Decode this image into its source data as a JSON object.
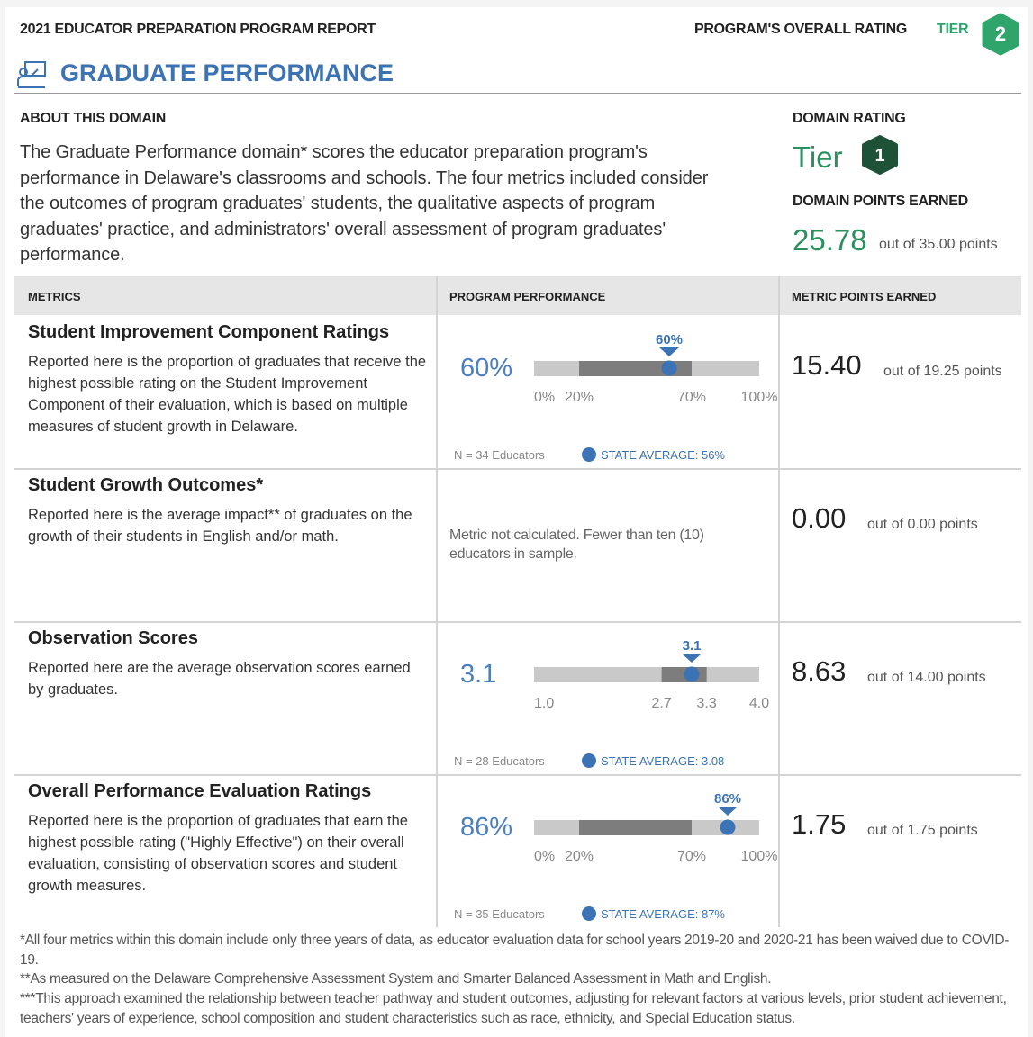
{
  "header": {
    "report_title": "2021 EDUCATOR PREPARATION PROGRAM REPORT",
    "overall_rating_label": "PROGRAM'S OVERALL RATING",
    "tier_label": "TIER",
    "tier_value": "2"
  },
  "section_title": "GRADUATE PERFORMANCE",
  "about": {
    "heading": "ABOUT THIS DOMAIN",
    "text": "The Graduate Performance domain* scores the educator preparation program's performance in Delaware's classrooms and schools. The four metrics included consider the outcomes of program graduates' students, the qualitative aspects of program graduates' practice, and administrators' overall assessment of program graduates' performance."
  },
  "domain": {
    "rating_heading": "DOMAIN RATING",
    "tier_word": "Tier",
    "tier_value": "1",
    "points_heading": "DOMAIN POINTS EARNED",
    "points": "25.78",
    "out_of": "out of 35.00 points"
  },
  "table": {
    "headers": [
      "METRICS",
      "PROGRAM PERFORMANCE",
      "METRIC POINTS EARNED"
    ],
    "rows": [
      {
        "title": "Student Improvement Component Ratings",
        "description": "Reported here is the proportion of graduates that receive the highest possible rating on the Student Improvement Component of their evaluation, which is based on multiple measures of student growth in Delaware.",
        "performance": {
          "value": 60,
          "label": "60%",
          "ticks": [
            {
              "value": 0,
              "label": "0%"
            },
            {
              "value": 20,
              "label": "20%"
            },
            {
              "value": 70,
              "label": "70%"
            },
            {
              "value": 100,
              "label": "100%"
            }
          ],
          "n": "N = 34 Educators",
          "state_average": "STATE AVERAGE: 56%"
        },
        "points": "15.40",
        "out_of": "out of 19.25 points"
      },
      {
        "title": "Student Growth Outcomes*",
        "description": "Reported here is the average impact** of graduates on the growth of their students in English and/or math.",
        "note": "Metric not calculated. Fewer than ten (10) educators in sample.",
        "points": "0.00",
        "out_of": "out of 0.00 points"
      },
      {
        "title": "Observation Scores",
        "description": "Reported here are the average observation scores earned by graduates.",
        "performance": {
          "value": 3.1,
          "label": "3.1",
          "ticks": [
            {
              "value": 1,
              "label": "1.0"
            },
            {
              "value": 2.7,
              "label": "2.7"
            },
            {
              "value": 3.3,
              "label": "3.3"
            },
            {
              "value": 4,
              "label": "4.0"
            }
          ],
          "n": "N = 28 Educators",
          "state_average": "STATE AVERAGE: 3.08"
        },
        "points": "8.63",
        "out_of": "out of 14.00 points"
      },
      {
        "title": "Overall Performance Evaluation Ratings",
        "description": "Reported here is the proportion of graduates that earn the highest possible rating (\"Highly Effective\") on their overall evaluation, consisting of observation scores and student growth measures.",
        "performance": {
          "value": 86,
          "label": "86%",
          "ticks": [
            {
              "value": 0,
              "label": "0%"
            },
            {
              "value": 20,
              "label": "20%"
            },
            {
              "value": 70,
              "label": "70%"
            },
            {
              "value": 100,
              "label": "100%"
            }
          ],
          "n": "N = 35 Educators",
          "state_average": "STATE AVERAGE: 87%"
        },
        "points": "1.75",
        "out_of": "out of 1.75 points"
      }
    ]
  },
  "footnotes": [
    "*All four metrics within this domain include only three years of data, as educator evaluation data for school years 2019-20 and 2020-21 has been waived due to COVID-19.",
    "**As measured on the Delaware Comprehensive Assessment System and Smarter Balanced Assessment in Math and English.",
    "***This approach examined the relationship between teacher pathway and student outcomes, adjusting for relevant factors at various levels, prior student achievement, teachers' years of experience, school composition and student characteristics such as race, ethnicity, and Special Education status."
  ]
}
